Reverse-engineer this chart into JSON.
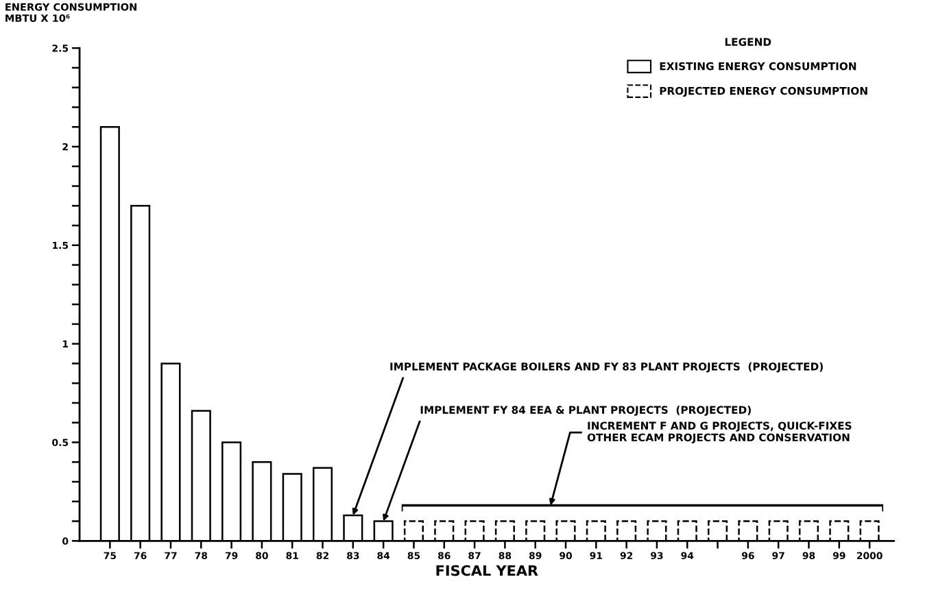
{
  "chart_data": {
    "type": "bar",
    "ylabel": "ENERGY CONSUMPTION\nMBTU X 10⁶",
    "xlabel": "FISCAL YEAR",
    "legend_title": "LEGEND",
    "categories": [
      "75",
      "76",
      "77",
      "78",
      "79",
      "80",
      "81",
      "82",
      "83",
      "84",
      "85",
      "86",
      "87",
      "88",
      "89",
      "90",
      "91",
      "92",
      "93",
      "94",
      null,
      "96",
      "97",
      "98",
      "99",
      "2000"
    ],
    "series": [
      {
        "name": "EXISTING ENERGY CONSUMPTION",
        "color": "#ffffff",
        "line_style": "solid",
        "values": [
          2.1,
          1.7,
          0.9,
          0.66,
          0.5,
          0.4,
          0.34,
          0.37,
          0.13,
          0.1,
          null,
          null,
          null,
          null,
          null,
          null,
          null,
          null,
          null,
          null,
          null,
          null,
          null,
          null,
          null,
          null
        ]
      },
      {
        "name": "PROJECTED ENERGY CONSUMPTION",
        "color": "#ffffff",
        "line_style": "dashed",
        "values": [
          null,
          null,
          null,
          null,
          null,
          null,
          null,
          null,
          null,
          null,
          0.1,
          0.1,
          0.1,
          0.1,
          0.1,
          0.1,
          0.1,
          0.1,
          0.1,
          0.1,
          0.1,
          0.1,
          0.1,
          0.1,
          0.1,
          0.1
        ]
      }
    ],
    "ylim": [
      0,
      2.5
    ],
    "yticks": [
      0,
      {
        "value": 0.1,
        "label": null
      },
      {
        "value": 0.2,
        "label": null
      },
      {
        "value": 0.3,
        "label": null
      },
      {
        "value": 0.4,
        "label": null
      },
      0.5,
      {
        "value": 0.6,
        "label": null
      },
      {
        "value": 0.7,
        "label": null
      },
      {
        "value": 0.8,
        "label": null
      },
      {
        "value": 0.9,
        "label": null
      },
      1,
      {
        "value": 1.1,
        "label": null
      },
      {
        "value": 1.2,
        "label": null
      },
      {
        "value": 1.3,
        "label": null
      },
      {
        "value": 1.4,
        "label": null
      },
      1.5,
      {
        "value": 1.6,
        "label": null
      },
      {
        "value": 1.7,
        "label": null
      },
      {
        "value": 1.8,
        "label": null
      },
      {
        "value": 1.9,
        "label": null
      },
      2,
      {
        "value": 2.1,
        "label": null
      },
      {
        "value": 2.2,
        "label": null
      },
      {
        "value": 2.3,
        "label": null
      },
      {
        "value": 2.4,
        "label": null
      },
      2.5
    ],
    "annotations": [
      {
        "text": "IMPLEMENT PACKAGE BOILERS AND FY 83 PLANT PROJECTS  (PROJECTED)",
        "x": "83",
        "y": 0.13
      },
      {
        "text": "IMPLEMENT FY 84 EEA & PLANT PROJECTS  (PROJECTED)",
        "x": "84",
        "y": 0.1
      },
      "INCREMENT F AND G PROJECTS, QUICK-FIXES\nOTHER ECAM PROJECTS AND CONSERVATION"
    ],
    "legend": "top right",
    "grid": false
  }
}
